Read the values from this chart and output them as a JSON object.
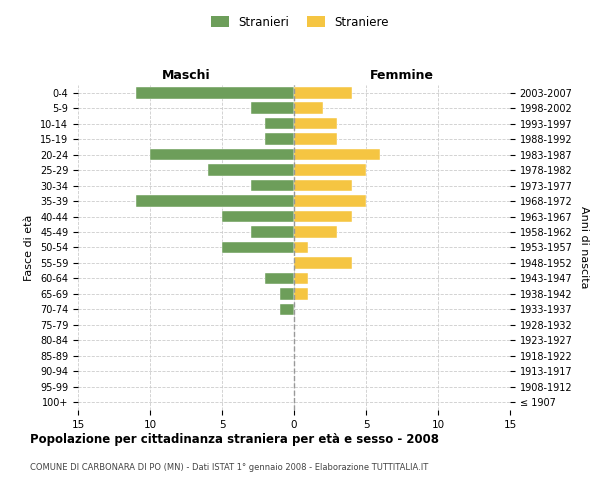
{
  "age_groups": [
    "100+",
    "95-99",
    "90-94",
    "85-89",
    "80-84",
    "75-79",
    "70-74",
    "65-69",
    "60-64",
    "55-59",
    "50-54",
    "45-49",
    "40-44",
    "35-39",
    "30-34",
    "25-29",
    "20-24",
    "15-19",
    "10-14",
    "5-9",
    "0-4"
  ],
  "birth_years": [
    "≤ 1907",
    "1908-1912",
    "1913-1917",
    "1918-1922",
    "1923-1927",
    "1928-1932",
    "1933-1937",
    "1938-1942",
    "1943-1947",
    "1948-1952",
    "1953-1957",
    "1958-1962",
    "1963-1967",
    "1968-1972",
    "1973-1977",
    "1978-1982",
    "1983-1987",
    "1988-1992",
    "1993-1997",
    "1998-2002",
    "2003-2007"
  ],
  "maschi": [
    0,
    0,
    0,
    0,
    0,
    0,
    1,
    1,
    2,
    0,
    5,
    3,
    5,
    11,
    3,
    6,
    10,
    2,
    2,
    3,
    11
  ],
  "femmine": [
    0,
    0,
    0,
    0,
    0,
    0,
    0,
    1,
    1,
    4,
    1,
    3,
    4,
    5,
    4,
    5,
    6,
    3,
    3,
    2,
    4
  ],
  "maschi_color": "#6d9e5a",
  "femmine_color": "#f5c542",
  "xlim": 15,
  "title": "Popolazione per cittadinanza straniera per età e sesso - 2008",
  "subtitle": "COMUNE DI CARBONARA DI PO (MN) - Dati ISTAT 1° gennaio 2008 - Elaborazione TUTTITALIA.IT",
  "ylabel_left": "Fasce di età",
  "ylabel_right": "Anni di nascita",
  "label_maschi": "Maschi",
  "label_femmine": "Femmine",
  "legend_stranieri": "Stranieri",
  "legend_straniere": "Straniere",
  "background_color": "#ffffff",
  "grid_color": "#cccccc",
  "xticks": [
    15,
    10,
    5,
    0,
    5,
    10,
    15
  ]
}
